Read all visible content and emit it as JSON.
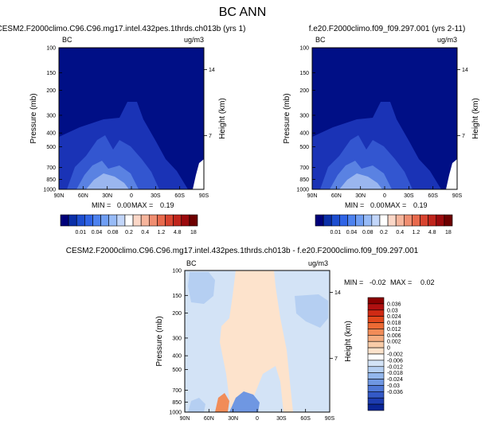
{
  "title": "BC ANN",
  "chart_data": [
    {
      "type": "contour",
      "panel": "left",
      "title": "CESM2.F2000climo.C96.C96.mg17.intel.432pes.1thrds.ch013b (yrs 1)",
      "field_label": "BC",
      "units": "ug/m3",
      "xlabel": "",
      "ylabel": "Pressure (mb)",
      "y2label": "Height (km)",
      "x_ticks": [
        "90N",
        "60N",
        "30N",
        "0",
        "30S",
        "60S",
        "90S"
      ],
      "y_ticks": [
        "100",
        "150",
        "200",
        "300",
        "400",
        "500",
        "700",
        "850",
        "1000"
      ],
      "y2_ticks": [
        "14",
        "7"
      ],
      "x_range": [
        "90N",
        "90S"
      ],
      "y_range": [
        1000,
        100
      ],
      "stats": {
        "min_label": "MIN =",
        "min": "0.00",
        "max_label": "MAX =",
        "max": "0.19"
      },
      "colorbar_levels": [
        "0.01",
        "0.04",
        "0.08",
        "0.2",
        "0.4",
        "1.2",
        "4.8",
        "18"
      ],
      "colorbar_colors": [
        "#00007a",
        "#0a2fa8",
        "#1d4ed0",
        "#2f64e6",
        "#4d82ef",
        "#6f9ef4",
        "#97bbf7",
        "#c2d6fa",
        "#ffffff",
        "#fbd7c7",
        "#f6b59c",
        "#f08e71",
        "#e86a4d",
        "#d84430",
        "#c0251c",
        "#9b0a0d",
        "#6e0000"
      ],
      "interior_colors": [
        "#1a33b6",
        "#3356d0",
        "#5a82e2",
        "#9ab6ef"
      ]
    },
    {
      "type": "contour",
      "panel": "right",
      "title": "f.e20.F2000climo.f09_f09.297.001 (yrs 2-11)",
      "field_label": "BC",
      "units": "ug/m3",
      "xlabel": "",
      "ylabel": "Pressure (mb)",
      "y2label": "Height (km)",
      "x_ticks": [
        "90N",
        "60N",
        "30N",
        "0",
        "30S",
        "60S",
        "90S"
      ],
      "y_ticks": [
        "100",
        "150",
        "200",
        "300",
        "400",
        "500",
        "700",
        "850",
        "1000"
      ],
      "y2_ticks": [
        "14",
        "7"
      ],
      "x_range": [
        "90N",
        "90S"
      ],
      "y_range": [
        1000,
        100
      ],
      "stats": {
        "min_label": "MIN =",
        "min": "0.00",
        "max_label": "MAX =",
        "max": "0.19"
      },
      "colorbar_levels": [
        "0.01",
        "0.04",
        "0.08",
        "0.2",
        "0.4",
        "1.2",
        "4.8",
        "18"
      ],
      "colorbar_colors": [
        "#00007a",
        "#0a2fa8",
        "#1d4ed0",
        "#2f64e6",
        "#4d82ef",
        "#6f9ef4",
        "#97bbf7",
        "#c2d6fa",
        "#ffffff",
        "#fbd7c7",
        "#f6b59c",
        "#f08e71",
        "#e86a4d",
        "#d84430",
        "#c0251c",
        "#9b0a0d",
        "#6e0000"
      ],
      "interior_colors": [
        "#1a33b6",
        "#3356d0",
        "#5a82e2",
        "#9ab6ef"
      ]
    },
    {
      "type": "contour",
      "panel": "difference",
      "title": "CESM2.F2000climo.C96.C96.mg17.intel.432pes.1thrds.ch013b - f.e20.F2000climo.f09_f09.297.001",
      "field_label": "BC",
      "units": "ug/m3",
      "xlabel": "",
      "ylabel": "Pressure (mb)",
      "y2label": "Height (km)",
      "x_ticks": [
        "90N",
        "60N",
        "30N",
        "0",
        "30S",
        "60S",
        "90S"
      ],
      "y_ticks": [
        "100",
        "150",
        "200",
        "300",
        "400",
        "500",
        "700",
        "850",
        "1000"
      ],
      "y2_ticks": [
        "14",
        "7"
      ],
      "x_range": [
        "90N",
        "90S"
      ],
      "y_range": [
        1000,
        100
      ],
      "stats": {
        "min_label": "MIN =",
        "min": "-0.02",
        "max_label": "MAX =",
        "max": "0.02"
      },
      "colorbar_levels": [
        "0.036",
        "0.03",
        "0.024",
        "0.018",
        "0.012",
        "0.006",
        "0.002",
        "0",
        "-0.002",
        "-0.006",
        "-0.012",
        "-0.018",
        "-0.024",
        "-0.03",
        "-0.036"
      ],
      "colorbar_colors": [
        "#8b0000",
        "#b01010",
        "#cf2a14",
        "#e2481c",
        "#ec6a34",
        "#f18c58",
        "#f5ad80",
        "#f9cca8",
        "#fde3cc",
        "#ffffff",
        "#d3e3f6",
        "#b5cff2",
        "#92b6ec",
        "#6f97e2",
        "#4f78d6",
        "#3459c6",
        "#1d3cb0",
        "#0a2596"
      ],
      "interior_colors": [
        "#fde3cc",
        "#d3e3f6",
        "#b5cff2",
        "#6f97e2",
        "#f18c58"
      ]
    }
  ]
}
